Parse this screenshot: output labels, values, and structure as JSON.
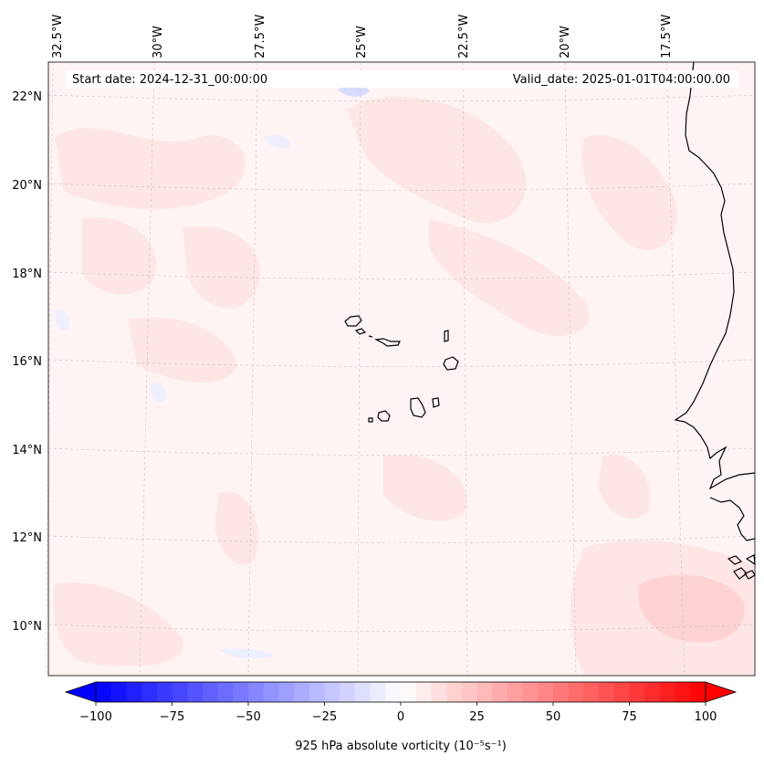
{
  "map": {
    "start_label": "Start date: 2024-12-31_00:00:00",
    "valid_label": "Valid_date: 2025-01-01T04:00:00.00",
    "lon_labels": [
      "32.5°W",
      "30°W",
      "27.5°W",
      "25°W",
      "22.5°W",
      "20°W",
      "17.5°W"
    ],
    "lat_labels": [
      "22°N",
      "20°N",
      "18°N",
      "16°N",
      "14°N",
      "12°N",
      "10°N"
    ],
    "field_colors": {
      "background": "#fff4f4",
      "positive_light": "#ffe6e6",
      "positive_mid": "#ffd3d3",
      "negative_light": "#eef0ff",
      "negative_mid": "#d8dcff"
    },
    "coastline_color": "#000000"
  },
  "colorbar": {
    "min": -100,
    "max": 100,
    "ticks": [
      "−100",
      "−75",
      "−50",
      "−25",
      "0",
      "25",
      "50",
      "75",
      "100"
    ],
    "label": "925 hPa absolute vorticity (10⁻⁵s⁻¹)",
    "low_color": "#0000ff",
    "mid_color": "#ffffff",
    "high_color": "#ff0000"
  }
}
